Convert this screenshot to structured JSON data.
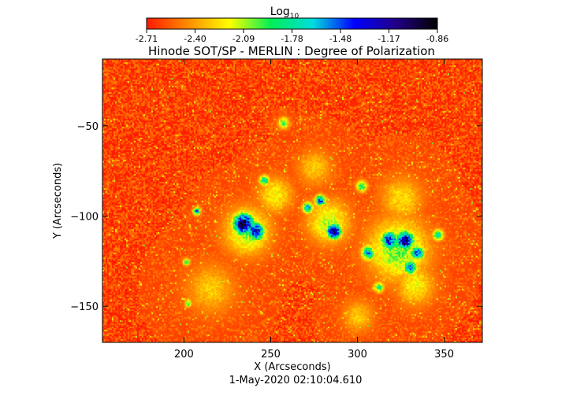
{
  "chart_data": {
    "type": "heatmap",
    "title": "Hinode SOT/SP - MERLIN : Degree of Polarization",
    "xlabel": "X (Arcseconds)",
    "ylabel": "Y (Arcseconds)",
    "footer": "1-May-2020 02:10:04.610",
    "xlim": [
      153,
      372
    ],
    "ylim": [
      -170,
      -13
    ],
    "x_ticks": [
      200,
      250,
      300,
      350
    ],
    "y_ticks": [
      -50,
      -100,
      -150
    ],
    "colorbar": {
      "label_main": "Log",
      "label_sub": "10",
      "range": [
        -2.71,
        -0.86
      ],
      "ticks": [
        "-2.71",
        "-2.40",
        "-2.09",
        "-1.78",
        "-1.48",
        "-1.17",
        "-0.86"
      ],
      "colormap": [
        "#ff1a00",
        "#ff8c00",
        "#ffff00",
        "#00ee55",
        "#00dddd",
        "#0000ff",
        "#220088",
        "#000000"
      ]
    },
    "background_value": -2.62,
    "features": [
      {
        "x": 234,
        "y": -104,
        "peak": -1.0,
        "radius": 6
      },
      {
        "x": 241,
        "y": -108,
        "peak": -1.2,
        "radius": 5
      },
      {
        "x": 286,
        "y": -108,
        "peak": -0.9,
        "radius": 4
      },
      {
        "x": 327,
        "y": -113,
        "peak": -1.0,
        "radius": 5
      },
      {
        "x": 318,
        "y": -113,
        "peak": -1.3,
        "radius": 5
      },
      {
        "x": 334,
        "y": -120,
        "peak": -1.4,
        "radius": 4
      },
      {
        "x": 330,
        "y": -128,
        "peak": -1.5,
        "radius": 4
      },
      {
        "x": 306,
        "y": -120,
        "peak": -1.6,
        "radius": 4
      },
      {
        "x": 278,
        "y": -91,
        "peak": -1.4,
        "radius": 3
      },
      {
        "x": 271,
        "y": -95,
        "peak": -1.6,
        "radius": 3
      },
      {
        "x": 246,
        "y": -80,
        "peak": -1.8,
        "radius": 3
      },
      {
        "x": 207,
        "y": -97,
        "peak": -1.5,
        "radius": 2
      },
      {
        "x": 257,
        "y": -48,
        "peak": -1.9,
        "radius": 3
      },
      {
        "x": 302,
        "y": -83,
        "peak": -1.8,
        "radius": 3
      },
      {
        "x": 346,
        "y": -110,
        "peak": -1.7,
        "radius": 3
      },
      {
        "x": 312,
        "y": -139,
        "peak": -1.9,
        "radius": 3
      },
      {
        "x": 201,
        "y": -125,
        "peak": -1.9,
        "radius": 2
      },
      {
        "x": 202,
        "y": -148,
        "peak": -1.9,
        "radius": 2
      }
    ],
    "regions": [
      {
        "x": 236,
        "y": -108,
        "peak": -2.05,
        "radius": 13
      },
      {
        "x": 323,
        "y": -118,
        "peak": -2.0,
        "radius": 17
      },
      {
        "x": 283,
        "y": -103,
        "peak": -2.1,
        "radius": 12
      },
      {
        "x": 252,
        "y": -88,
        "peak": -2.2,
        "radius": 10
      },
      {
        "x": 325,
        "y": -90,
        "peak": -2.25,
        "radius": 12
      },
      {
        "x": 333,
        "y": -138,
        "peak": -2.2,
        "radius": 11
      },
      {
        "x": 215,
        "y": -140,
        "peak": -2.3,
        "radius": 14
      },
      {
        "x": 275,
        "y": -73,
        "peak": -2.3,
        "radius": 10
      },
      {
        "x": 300,
        "y": -155,
        "peak": -2.3,
        "radius": 9
      }
    ]
  }
}
